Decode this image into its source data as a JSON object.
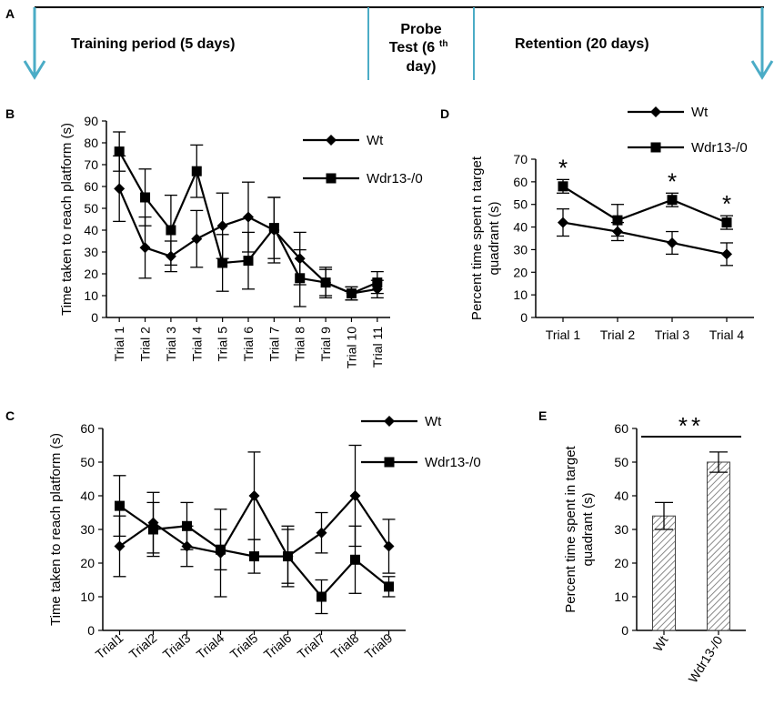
{
  "timeline": {
    "letter": "A",
    "training": "Training period (5 days)",
    "probe_line1": "Probe",
    "probe_line2": "Test (6",
    "probe_sup": "th",
    "probe_line3": "day)",
    "retention": "Retention (20 days)",
    "line_color": "#4bacc6"
  },
  "chart_data": [
    {
      "panel": "B",
      "type": "line",
      "ylabel": "Time taken to reach platform (s)",
      "ylim": [
        0,
        90
      ],
      "yticks": [
        "0",
        "10",
        "20",
        "30",
        "40",
        "50",
        "60",
        "70",
        "80",
        "90"
      ],
      "categories": [
        "Trial 1",
        "Trial 2",
        "Trial 3",
        "Trial 4",
        "Trial 5",
        "Trial 6",
        "Trial 7",
        "Trial 8",
        "Trial 9",
        "Trial 10",
        "Trial 11"
      ],
      "legend": "top-right",
      "series": [
        {
          "name": "Wt",
          "marker": "diamond",
          "values": [
            59,
            32,
            28,
            36,
            42,
            46,
            40,
            27,
            16,
            11,
            13
          ],
          "errors": [
            15,
            14,
            7,
            13,
            15,
            16,
            15,
            12,
            7,
            3,
            4
          ]
        },
        {
          "name": "Wdr13-/0",
          "marker": "square",
          "values": [
            76,
            55,
            40,
            67,
            25,
            26,
            41,
            18,
            16,
            11,
            16
          ],
          "errors": [
            9,
            13,
            16,
            12,
            13,
            13,
            14,
            13,
            6,
            3,
            5
          ]
        }
      ]
    },
    {
      "panel": "D",
      "type": "line",
      "ylabel": "Percent time spent n target quadrant (s)",
      "ylim": [
        0,
        70
      ],
      "yticks": [
        "0",
        "10",
        "20",
        "30",
        "40",
        "50",
        "60",
        "70"
      ],
      "categories": [
        "Trial 1",
        "Trial 2",
        "Trial 3",
        "Trial 4"
      ],
      "legend": "top",
      "stars": [
        "*",
        "",
        "*",
        "*"
      ],
      "series": [
        {
          "name": "Wt",
          "marker": "diamond",
          "values": [
            42,
            38,
            33,
            28
          ],
          "errors": [
            6,
            4,
            5,
            5
          ]
        },
        {
          "name": "Wdr13-/0",
          "marker": "square",
          "values": [
            58,
            43,
            52,
            42
          ],
          "errors": [
            3,
            7,
            3,
            3
          ]
        }
      ]
    },
    {
      "panel": "C",
      "type": "line",
      "ylabel": "Time taken to reach platform (s)",
      "ylim": [
        0,
        60
      ],
      "yticks": [
        "0",
        "10",
        "20",
        "30",
        "40",
        "50",
        "60"
      ],
      "categories": [
        "Trial1",
        "Trial2",
        "Trial3",
        "Trial4",
        "Trial5",
        "Trial6",
        "Trial7",
        "Trial8",
        "Trial9"
      ],
      "legend": "top-right",
      "series": [
        {
          "name": "Wt",
          "marker": "diamond",
          "values": [
            25,
            32,
            25,
            23,
            40,
            22,
            29,
            40,
            25
          ],
          "errors": [
            9,
            9,
            6,
            13,
            13,
            9,
            6,
            15,
            8
          ]
        },
        {
          "name": "Wdr13-/0",
          "marker": "square",
          "values": [
            37,
            30,
            31,
            24,
            22,
            22,
            10,
            21,
            13
          ],
          "errors": [
            9,
            8,
            7,
            6,
            5,
            8,
            5,
            10,
            3
          ]
        }
      ]
    },
    {
      "panel": "E",
      "type": "bar",
      "ylabel": "Percent time spent in target quadrant (s)",
      "ylim": [
        0,
        60
      ],
      "yticks": [
        "0",
        "10",
        "20",
        "30",
        "40",
        "50",
        "60"
      ],
      "categories": [
        "Wt",
        "Wdr13-/0"
      ],
      "values": [
        34,
        50
      ],
      "errors": [
        4,
        3
      ],
      "significance": "**"
    }
  ]
}
